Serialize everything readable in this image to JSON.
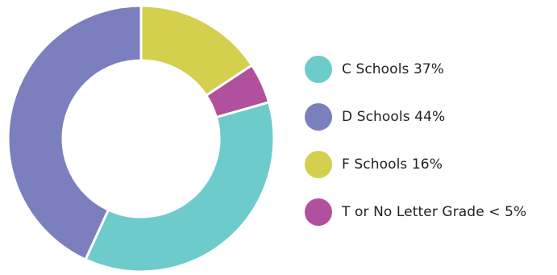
{
  "chart_data": {
    "type": "pie",
    "donut": true,
    "title": "",
    "series": [
      {
        "label": "C Schools 37%",
        "value": 37,
        "color": "#6ecbcc"
      },
      {
        "label": "D Schools 44%",
        "value": 44,
        "color": "#7b7fbe"
      },
      {
        "label": "F Schools 16%",
        "value": 16,
        "color": "#d4cf4d"
      },
      {
        "label": "T or No Letter Grade < 5%",
        "value": 5,
        "color": "#b1509c"
      }
    ],
    "legend_position": "right"
  }
}
